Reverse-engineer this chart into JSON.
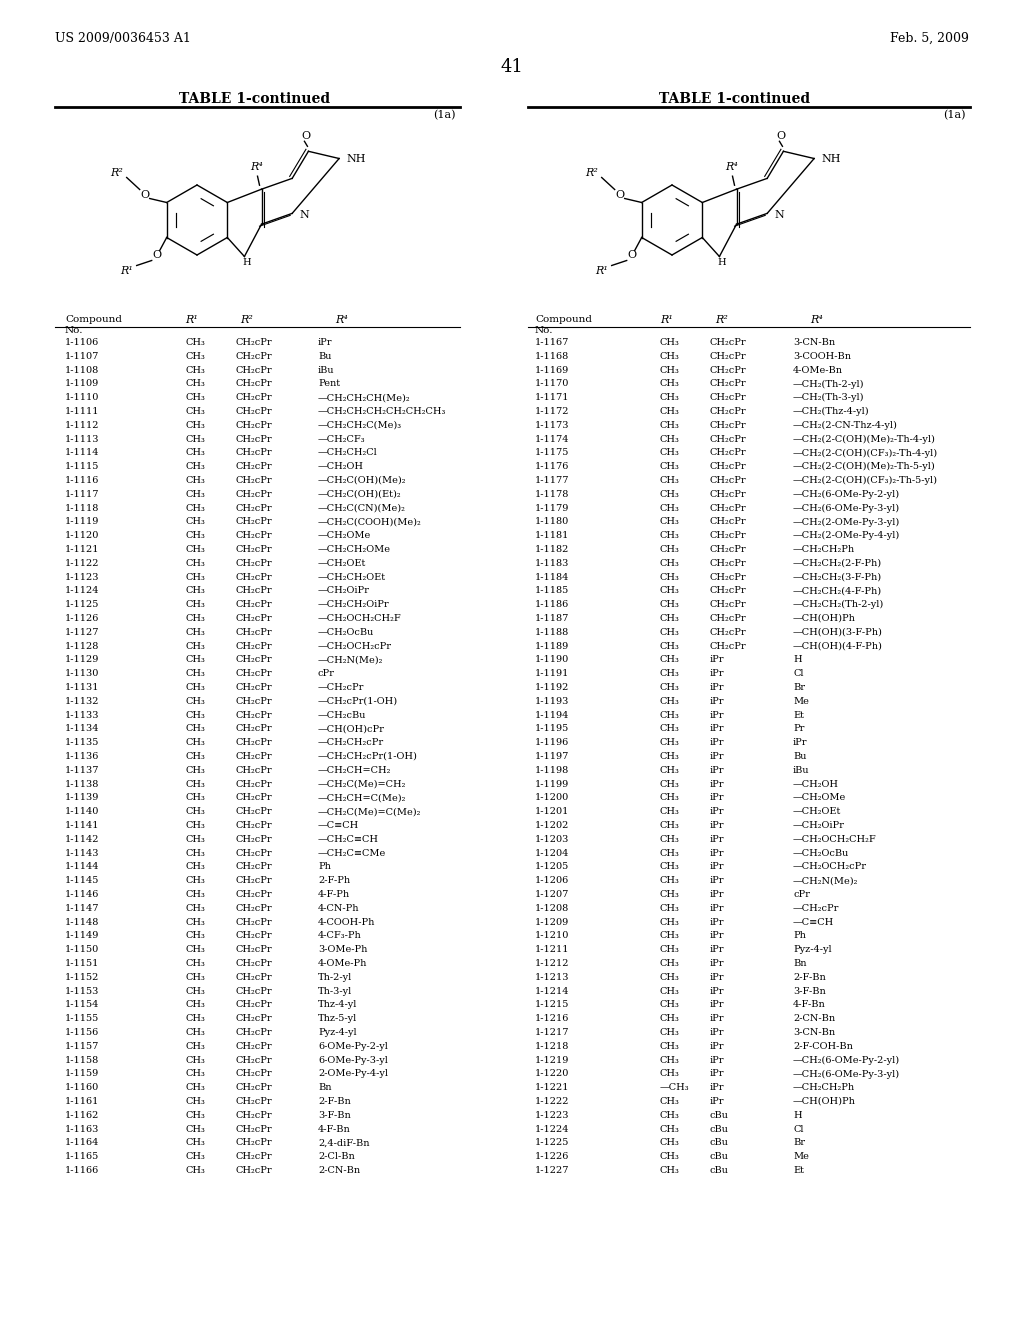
{
  "header_left": "US 2009/0036453 A1",
  "header_right": "Feb. 5, 2009",
  "page_number": "41",
  "table_title": "TABLE 1-continued",
  "formula_label": "(1a)",
  "left_data": [
    [
      "1-1106",
      "CH₃",
      "CH₂cPr",
      "iPr"
    ],
    [
      "1-1107",
      "CH₃",
      "CH₂cPr",
      "Bu"
    ],
    [
      "1-1108",
      "CH₃",
      "CH₂cPr",
      "iBu"
    ],
    [
      "1-1109",
      "CH₃",
      "CH₂cPr",
      "Pent"
    ],
    [
      "1-1110",
      "CH₃",
      "CH₂cPr",
      "—CH₂CH₂CH(Me)₂"
    ],
    [
      "1-1111",
      "CH₃",
      "CH₂cPr",
      "—CH₂CH₂CH₂CH₂CH₂CH₃"
    ],
    [
      "1-1112",
      "CH₃",
      "CH₂cPr",
      "—CH₂CH₂C(Me)₃"
    ],
    [
      "1-1113",
      "CH₃",
      "CH₂cPr",
      "—CH₂CF₃"
    ],
    [
      "1-1114",
      "CH₃",
      "CH₂cPr",
      "—CH₂CH₂Cl"
    ],
    [
      "1-1115",
      "CH₃",
      "CH₂cPr",
      "—CH₂OH"
    ],
    [
      "1-1116",
      "CH₃",
      "CH₂cPr",
      "—CH₂C(OH)(Me)₂"
    ],
    [
      "1-1117",
      "CH₃",
      "CH₂cPr",
      "—CH₂C(OH)(Et)₂"
    ],
    [
      "1-1118",
      "CH₃",
      "CH₂cPr",
      "—CH₂C(CN)(Me)₂"
    ],
    [
      "1-1119",
      "CH₃",
      "CH₂cPr",
      "—CH₂C(COOH)(Me)₂"
    ],
    [
      "1-1120",
      "CH₃",
      "CH₂cPr",
      "—CH₂OMe"
    ],
    [
      "1-1121",
      "CH₃",
      "CH₂cPr",
      "—CH₂CH₂OMe"
    ],
    [
      "1-1122",
      "CH₃",
      "CH₂cPr",
      "—CH₂OEt"
    ],
    [
      "1-1123",
      "CH₃",
      "CH₂cPr",
      "—CH₂CH₂OEt"
    ],
    [
      "1-1124",
      "CH₃",
      "CH₂cPr",
      "—CH₂OiPr"
    ],
    [
      "1-1125",
      "CH₃",
      "CH₂cPr",
      "—CH₂CH₂OiPr"
    ],
    [
      "1-1126",
      "CH₃",
      "CH₂cPr",
      "—CH₂OCH₂CH₂F"
    ],
    [
      "1-1127",
      "CH₃",
      "CH₂cPr",
      "—CH₂OcBu"
    ],
    [
      "1-1128",
      "CH₃",
      "CH₂cPr",
      "—CH₂OCH₂cPr"
    ],
    [
      "1-1129",
      "CH₃",
      "CH₂cPr",
      "—CH₂N(Me)₂"
    ],
    [
      "1-1130",
      "CH₃",
      "CH₂cPr",
      "cPr"
    ],
    [
      "1-1131",
      "CH₃",
      "CH₂cPr",
      "—CH₂cPr"
    ],
    [
      "1-1132",
      "CH₃",
      "CH₂cPr",
      "—CH₂cPr(1-OH)"
    ],
    [
      "1-1133",
      "CH₃",
      "CH₂cPr",
      "—CH₂cBu"
    ],
    [
      "1-1134",
      "CH₃",
      "CH₂cPr",
      "—CH(OH)cPr"
    ],
    [
      "1-1135",
      "CH₃",
      "CH₂cPr",
      "—CH₂CH₂cPr"
    ],
    [
      "1-1136",
      "CH₃",
      "CH₂cPr",
      "—CH₂CH₂cPr(1-OH)"
    ],
    [
      "1-1137",
      "CH₃",
      "CH₂cPr",
      "—CH₂CH=CH₂"
    ],
    [
      "1-1138",
      "CH₃",
      "CH₂cPr",
      "—CH₂C(Me)=CH₂"
    ],
    [
      "1-1139",
      "CH₃",
      "CH₂cPr",
      "—CH₂CH=C(Me)₂"
    ],
    [
      "1-1140",
      "CH₃",
      "CH₂cPr",
      "—CH₂C(Me)=C(Me)₂"
    ],
    [
      "1-1141",
      "CH₃",
      "CH₂cPr",
      "—C≡CH"
    ],
    [
      "1-1142",
      "CH₃",
      "CH₂cPr",
      "—CH₂C≡CH"
    ],
    [
      "1-1143",
      "CH₃",
      "CH₂cPr",
      "—CH₂C≡CMe"
    ],
    [
      "1-1144",
      "CH₃",
      "CH₂cPr",
      "Ph"
    ],
    [
      "1-1145",
      "CH₃",
      "CH₂cPr",
      "2-F-Ph"
    ],
    [
      "1-1146",
      "CH₃",
      "CH₂cPr",
      "4-F-Ph"
    ],
    [
      "1-1147",
      "CH₃",
      "CH₂cPr",
      "4-CN-Ph"
    ],
    [
      "1-1148",
      "CH₃",
      "CH₂cPr",
      "4-COOH-Ph"
    ],
    [
      "1-1149",
      "CH₃",
      "CH₂cPr",
      "4-CF₃-Ph"
    ],
    [
      "1-1150",
      "CH₃",
      "CH₂cPr",
      "3-OMe-Ph"
    ],
    [
      "1-1151",
      "CH₃",
      "CH₂cPr",
      "4-OMe-Ph"
    ],
    [
      "1-1152",
      "CH₃",
      "CH₂cPr",
      "Th-2-yl"
    ],
    [
      "1-1153",
      "CH₃",
      "CH₂cPr",
      "Th-3-yl"
    ],
    [
      "1-1154",
      "CH₃",
      "CH₂cPr",
      "Thz-4-yl"
    ],
    [
      "1-1155",
      "CH₃",
      "CH₂cPr",
      "Thz-5-yl"
    ],
    [
      "1-1156",
      "CH₃",
      "CH₂cPr",
      "Pyz-4-yl"
    ],
    [
      "1-1157",
      "CH₃",
      "CH₂cPr",
      "6-OMe-Py-2-yl"
    ],
    [
      "1-1158",
      "CH₃",
      "CH₂cPr",
      "6-OMe-Py-3-yl"
    ],
    [
      "1-1159",
      "CH₃",
      "CH₂cPr",
      "2-OMe-Py-4-yl"
    ],
    [
      "1-1160",
      "CH₃",
      "CH₂cPr",
      "Bn"
    ],
    [
      "1-1161",
      "CH₃",
      "CH₂cPr",
      "2-F-Bn"
    ],
    [
      "1-1162",
      "CH₃",
      "CH₂cPr",
      "3-F-Bn"
    ],
    [
      "1-1163",
      "CH₃",
      "CH₂cPr",
      "4-F-Bn"
    ],
    [
      "1-1164",
      "CH₃",
      "CH₂cPr",
      "2,4-diF-Bn"
    ],
    [
      "1-1165",
      "CH₃",
      "CH₂cPr",
      "2-Cl-Bn"
    ],
    [
      "1-1166",
      "CH₃",
      "CH₂cPr",
      "2-CN-Bn"
    ]
  ],
  "right_data": [
    [
      "1-1167",
      "CH₃",
      "CH₂cPr",
      "3-CN-Bn"
    ],
    [
      "1-1168",
      "CH₃",
      "CH₂cPr",
      "3-COOH-Bn"
    ],
    [
      "1-1169",
      "CH₃",
      "CH₂cPr",
      "4-OMe-Bn"
    ],
    [
      "1-1170",
      "CH₃",
      "CH₂cPr",
      "—CH₂(Th-2-yl)"
    ],
    [
      "1-1171",
      "CH₃",
      "CH₂cPr",
      "—CH₂(Th-3-yl)"
    ],
    [
      "1-1172",
      "CH₃",
      "CH₂cPr",
      "—CH₂(Thz-4-yl)"
    ],
    [
      "1-1173",
      "CH₃",
      "CH₂cPr",
      "—CH₂(2-CN-Thz-4-yl)"
    ],
    [
      "1-1174",
      "CH₃",
      "CH₂cPr",
      "—CH₂(2-C(OH)(Me)₂-Th-4-yl)"
    ],
    [
      "1-1175",
      "CH₃",
      "CH₂cPr",
      "—CH₂(2-C(OH)(CF₃)₂-Th-4-yl)"
    ],
    [
      "1-1176",
      "CH₃",
      "CH₂cPr",
      "—CH₂(2-C(OH)(Me)₂-Th-5-yl)"
    ],
    [
      "1-1177",
      "CH₃",
      "CH₂cPr",
      "—CH₂(2-C(OH)(CF₃)₂-Th-5-yl)"
    ],
    [
      "1-1178",
      "CH₃",
      "CH₂cPr",
      "—CH₂(6-OMe-Py-2-yl)"
    ],
    [
      "1-1179",
      "CH₃",
      "CH₂cPr",
      "—CH₂(6-OMe-Py-3-yl)"
    ],
    [
      "1-1180",
      "CH₃",
      "CH₂cPr",
      "—CH₂(2-OMe-Py-3-yl)"
    ],
    [
      "1-1181",
      "CH₃",
      "CH₂cPr",
      "—CH₂(2-OMe-Py-4-yl)"
    ],
    [
      "1-1182",
      "CH₃",
      "CH₂cPr",
      "—CH₂CH₂Ph"
    ],
    [
      "1-1183",
      "CH₃",
      "CH₂cPr",
      "—CH₂CH₂(2-F-Ph)"
    ],
    [
      "1-1184",
      "CH₃",
      "CH₂cPr",
      "—CH₂CH₂(3-F-Ph)"
    ],
    [
      "1-1185",
      "CH₃",
      "CH₂cPr",
      "—CH₂CH₂(4-F-Ph)"
    ],
    [
      "1-1186",
      "CH₃",
      "CH₂cPr",
      "—CH₂CH₂(Th-2-yl)"
    ],
    [
      "1-1187",
      "CH₃",
      "CH₂cPr",
      "—CH(OH)Ph"
    ],
    [
      "1-1188",
      "CH₃",
      "CH₂cPr",
      "—CH(OH)(3-F-Ph)"
    ],
    [
      "1-1189",
      "CH₃",
      "CH₂cPr",
      "—CH(OH)(4-F-Ph)"
    ],
    [
      "1-1190",
      "CH₃",
      "iPr",
      "H"
    ],
    [
      "1-1191",
      "CH₃",
      "iPr",
      "Cl"
    ],
    [
      "1-1192",
      "CH₃",
      "iPr",
      "Br"
    ],
    [
      "1-1193",
      "CH₃",
      "iPr",
      "Me"
    ],
    [
      "1-1194",
      "CH₃",
      "iPr",
      "Et"
    ],
    [
      "1-1195",
      "CH₃",
      "iPr",
      "Pr"
    ],
    [
      "1-1196",
      "CH₃",
      "iPr",
      "iPr"
    ],
    [
      "1-1197",
      "CH₃",
      "iPr",
      "Bu"
    ],
    [
      "1-1198",
      "CH₃",
      "iPr",
      "iBu"
    ],
    [
      "1-1199",
      "CH₃",
      "iPr",
      "—CH₂OH"
    ],
    [
      "1-1200",
      "CH₃",
      "iPr",
      "—CH₂OMe"
    ],
    [
      "1-1201",
      "CH₃",
      "iPr",
      "—CH₂OEt"
    ],
    [
      "1-1202",
      "CH₃",
      "iPr",
      "—CH₂OiPr"
    ],
    [
      "1-1203",
      "CH₃",
      "iPr",
      "—CH₂OCH₂CH₂F"
    ],
    [
      "1-1204",
      "CH₃",
      "iPr",
      "—CH₂OcBu"
    ],
    [
      "1-1205",
      "CH₃",
      "iPr",
      "—CH₂OCH₂cPr"
    ],
    [
      "1-1206",
      "CH₃",
      "iPr",
      "—CH₂N(Me)₂"
    ],
    [
      "1-1207",
      "CH₃",
      "iPr",
      "cPr"
    ],
    [
      "1-1208",
      "CH₃",
      "iPr",
      "—CH₂cPr"
    ],
    [
      "1-1209",
      "CH₃",
      "iPr",
      "—C≡CH"
    ],
    [
      "1-1210",
      "CH₃",
      "iPr",
      "Ph"
    ],
    [
      "1-1211",
      "CH₃",
      "iPr",
      "Pyz-4-yl"
    ],
    [
      "1-1212",
      "CH₃",
      "iPr",
      "Bn"
    ],
    [
      "1-1213",
      "CH₃",
      "iPr",
      "2-F-Bn"
    ],
    [
      "1-1214",
      "CH₃",
      "iPr",
      "3-F-Bn"
    ],
    [
      "1-1215",
      "CH₃",
      "iPr",
      "4-F-Bn"
    ],
    [
      "1-1216",
      "CH₃",
      "iPr",
      "2-CN-Bn"
    ],
    [
      "1-1217",
      "CH₃",
      "iPr",
      "3-CN-Bn"
    ],
    [
      "1-1218",
      "CH₃",
      "iPr",
      "2-F-COH-Bn"
    ],
    [
      "1-1219",
      "CH₃",
      "iPr",
      "—CH₂(6-OMe-Py-2-yl)"
    ],
    [
      "1-1220",
      "CH₃",
      "iPr",
      "—CH₂(6-OMe-Py-3-yl)"
    ],
    [
      "1-1221",
      "—CH₃",
      "iPr",
      "—CH₂CH₂Ph"
    ],
    [
      "1-1222",
      "CH₃",
      "iPr",
      "—CH(OH)Ph"
    ],
    [
      "1-1223",
      "CH₃",
      "cBu",
      "H"
    ],
    [
      "1-1224",
      "CH₃",
      "cBu",
      "Cl"
    ],
    [
      "1-1225",
      "CH₃",
      "cBu",
      "Br"
    ],
    [
      "1-1226",
      "CH₃",
      "cBu",
      "Me"
    ],
    [
      "1-1227",
      "CH₃",
      "cBu",
      "Et"
    ]
  ],
  "background_color": "#ffffff",
  "text_color": "#000000",
  "line_color": "#000000"
}
